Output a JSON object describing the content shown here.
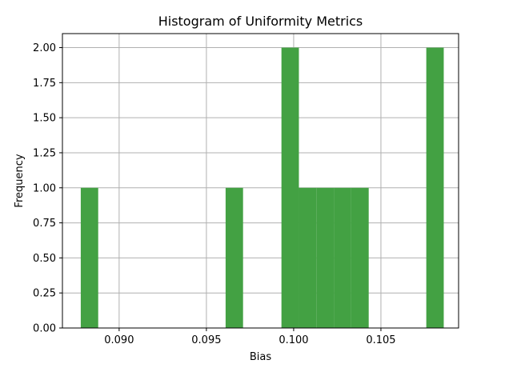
{
  "chart_data": {
    "type": "bar",
    "title": "Histogram of Uniformity Metrics",
    "xlabel": "Bias",
    "ylabel": "Frequency",
    "xlim": [
      0.08675,
      0.10945
    ],
    "ylim": [
      0,
      2.1
    ],
    "grid": true,
    "bar_color": "#43a143",
    "grid_color": "#b0b0b0",
    "bin_width": 0.001,
    "bins": [
      {
        "start": 0.0878,
        "count": 1
      },
      {
        "start": 0.0961,
        "count": 1
      },
      {
        "start": 0.0993,
        "count": 2
      },
      {
        "start": 0.1003,
        "count": 1
      },
      {
        "start": 0.1013,
        "count": 1
      },
      {
        "start": 0.1023,
        "count": 1
      },
      {
        "start": 0.1033,
        "count": 1
      },
      {
        "start": 0.1076,
        "count": 2
      }
    ],
    "x_ticks": [
      {
        "value": 0.09,
        "label": "0.090"
      },
      {
        "value": 0.095,
        "label": "0.095"
      },
      {
        "value": 0.1,
        "label": "0.100"
      },
      {
        "value": 0.105,
        "label": "0.105"
      }
    ],
    "y_ticks": [
      {
        "value": 0.0,
        "label": "0.00"
      },
      {
        "value": 0.25,
        "label": "0.25"
      },
      {
        "value": 0.5,
        "label": "0.50"
      },
      {
        "value": 0.75,
        "label": "0.75"
      },
      {
        "value": 1.0,
        "label": "1.00"
      },
      {
        "value": 1.25,
        "label": "1.25"
      },
      {
        "value": 1.5,
        "label": "1.50"
      },
      {
        "value": 1.75,
        "label": "1.75"
      },
      {
        "value": 2.0,
        "label": "2.00"
      }
    ]
  }
}
